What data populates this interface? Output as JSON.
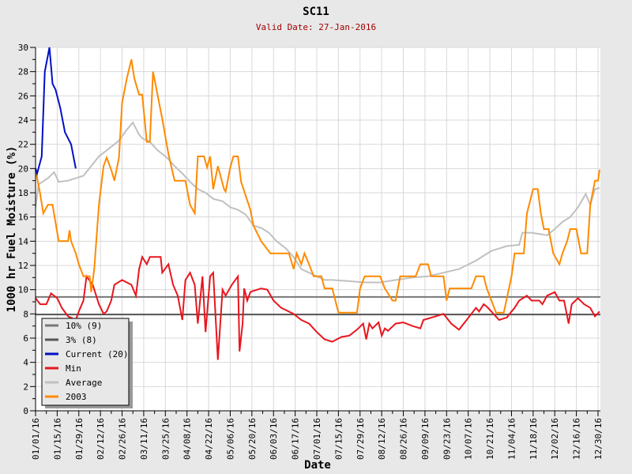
{
  "chart_data": {
    "type": "line",
    "title": "SC11",
    "subtitle": "Valid Date: 27-Jan-2016",
    "xlabel": "Date",
    "ylabel": "1000 hr Fuel Moisture (%)",
    "ylim": [
      0,
      30
    ],
    "xlim_days": [
      0,
      365
    ],
    "grid": true,
    "legend_position": "bottom-left",
    "yticks": [
      0,
      2,
      4,
      6,
      8,
      10,
      12,
      14,
      16,
      18,
      20,
      22,
      24,
      26,
      28,
      30
    ],
    "xtick_labels": [
      "01/01/16",
      "01/15/16",
      "01/29/16",
      "02/12/16",
      "02/26/16",
      "03/11/16",
      "03/25/16",
      "04/08/16",
      "04/22/16",
      "05/06/16",
      "05/20/16",
      "06/03/16",
      "06/17/16",
      "07/01/16",
      "07/15/16",
      "07/29/16",
      "08/12/16",
      "08/26/16",
      "09/09/16",
      "09/23/16",
      "10/07/16",
      "10/21/16",
      "11/04/16",
      "11/18/16",
      "12/02/16",
      "12/16/16",
      "12/30/16"
    ],
    "thresholds": [
      {
        "name": "10% (9)",
        "value": 9.4,
        "color": "#777777"
      },
      {
        "name": "3% (8)",
        "value": 7.95,
        "color": "#555555"
      }
    ],
    "series": [
      {
        "name": "Min",
        "color": "#e8161e",
        "points": [
          [
            0,
            9.3
          ],
          [
            3,
            8.8
          ],
          [
            7,
            8.8
          ],
          [
            10,
            9.7
          ],
          [
            14,
            9.3
          ],
          [
            17,
            8.5
          ],
          [
            21,
            7.8
          ],
          [
            26,
            7.5
          ],
          [
            28,
            8.2
          ],
          [
            31,
            9.1
          ],
          [
            33,
            11.1
          ],
          [
            37,
            10.4
          ],
          [
            41,
            8.8
          ],
          [
            44,
            8.0
          ],
          [
            46,
            8.2
          ],
          [
            49,
            9.1
          ],
          [
            51,
            10.4
          ],
          [
            56,
            10.8
          ],
          [
            62,
            10.4
          ],
          [
            65,
            9.5
          ],
          [
            67,
            11.7
          ],
          [
            69,
            12.7
          ],
          [
            72,
            12.1
          ],
          [
            74,
            12.7
          ],
          [
            81,
            12.7
          ],
          [
            82,
            11.4
          ],
          [
            86,
            12.1
          ],
          [
            89,
            10.4
          ],
          [
            92,
            9.5
          ],
          [
            95,
            7.5
          ],
          [
            97,
            10.8
          ],
          [
            100,
            11.4
          ],
          [
            103,
            10.4
          ],
          [
            105,
            7.2
          ],
          [
            108,
            11.1
          ],
          [
            110,
            6.5
          ],
          [
            113,
            11.1
          ],
          [
            115,
            11.4
          ],
          [
            118,
            4.2
          ],
          [
            121,
            10.0
          ],
          [
            123,
            9.5
          ],
          [
            127,
            10.4
          ],
          [
            131,
            11.1
          ],
          [
            132,
            4.9
          ],
          [
            134,
            7.2
          ],
          [
            135,
            10.1
          ],
          [
            137,
            9.1
          ],
          [
            139,
            9.8
          ],
          [
            141,
            9.9
          ],
          [
            146,
            10.1
          ],
          [
            150,
            10.0
          ],
          [
            154,
            9.1
          ],
          [
            159,
            8.5
          ],
          [
            167,
            8.0
          ],
          [
            172,
            7.5
          ],
          [
            177,
            7.2
          ],
          [
            182,
            6.5
          ],
          [
            187,
            5.9
          ],
          [
            192,
            5.7
          ],
          [
            198,
            6.1
          ],
          [
            203,
            6.2
          ],
          [
            208,
            6.7
          ],
          [
            212,
            7.2
          ],
          [
            214,
            5.9
          ],
          [
            216,
            7.2
          ],
          [
            218,
            6.8
          ],
          [
            222,
            7.3
          ],
          [
            224,
            6.2
          ],
          [
            226,
            6.8
          ],
          [
            228,
            6.6
          ],
          [
            233,
            7.2
          ],
          [
            238,
            7.3
          ],
          [
            244,
            7.0
          ],
          [
            249,
            6.8
          ],
          [
            251,
            7.5
          ],
          [
            259,
            7.8
          ],
          [
            264,
            8.0
          ],
          [
            269,
            7.2
          ],
          [
            274,
            6.7
          ],
          [
            279,
            7.5
          ],
          [
            285,
            8.5
          ],
          [
            287,
            8.2
          ],
          [
            290,
            8.8
          ],
          [
            292,
            8.6
          ],
          [
            295,
            8.2
          ],
          [
            300,
            7.5
          ],
          [
            305,
            7.7
          ],
          [
            308,
            8.2
          ],
          [
            310,
            8.5
          ],
          [
            313,
            9.1
          ],
          [
            318,
            9.5
          ],
          [
            321,
            9.1
          ],
          [
            326,
            9.1
          ],
          [
            328,
            8.8
          ],
          [
            331,
            9.5
          ],
          [
            336,
            9.8
          ],
          [
            339,
            9.1
          ],
          [
            342,
            9.1
          ],
          [
            345,
            7.2
          ],
          [
            347,
            8.8
          ],
          [
            351,
            9.3
          ],
          [
            355,
            8.8
          ],
          [
            359,
            8.5
          ],
          [
            362,
            7.8
          ],
          [
            365,
            8.2
          ]
        ]
      },
      {
        "name": "Average",
        "color": "#c0c0c0",
        "points": [
          [
            0,
            16.8
          ],
          [
            2,
            18.7
          ],
          [
            8,
            19.2
          ],
          [
            12,
            19.7
          ],
          [
            15,
            18.9
          ],
          [
            21,
            19.0
          ],
          [
            26,
            19.2
          ],
          [
            31,
            19.4
          ],
          [
            36,
            20.2
          ],
          [
            41,
            21.0
          ],
          [
            46,
            21.5
          ],
          [
            54,
            22.3
          ],
          [
            59,
            23.2
          ],
          [
            63,
            23.8
          ],
          [
            67,
            22.8
          ],
          [
            69,
            22.5
          ],
          [
            74,
            22.2
          ],
          [
            79,
            21.5
          ],
          [
            85,
            20.9
          ],
          [
            90,
            20.2
          ],
          [
            95,
            19.6
          ],
          [
            100,
            18.9
          ],
          [
            105,
            18.3
          ],
          [
            110,
            18.0
          ],
          [
            115,
            17.5
          ],
          [
            121,
            17.3
          ],
          [
            126,
            16.8
          ],
          [
            131,
            16.6
          ],
          [
            136,
            16.2
          ],
          [
            141,
            15.3
          ],
          [
            146,
            15.1
          ],
          [
            151,
            14.7
          ],
          [
            156,
            14.0
          ],
          [
            162,
            13.4
          ],
          [
            167,
            12.7
          ],
          [
            172,
            11.7
          ],
          [
            177,
            11.4
          ],
          [
            182,
            11.1
          ],
          [
            187,
            10.8
          ],
          [
            192,
            10.8
          ],
          [
            203,
            10.7
          ],
          [
            213,
            10.6
          ],
          [
            223,
            10.6
          ],
          [
            233,
            10.8
          ],
          [
            244,
            11.0
          ],
          [
            254,
            11.1
          ],
          [
            264,
            11.4
          ],
          [
            274,
            11.7
          ],
          [
            285,
            12.4
          ],
          [
            295,
            13.2
          ],
          [
            305,
            13.6
          ],
          [
            313,
            13.7
          ],
          [
            315,
            14.7
          ],
          [
            321,
            14.7
          ],
          [
            331,
            14.5
          ],
          [
            336,
            15.0
          ],
          [
            341,
            15.6
          ],
          [
            346,
            16.0
          ],
          [
            351,
            16.8
          ],
          [
            356,
            17.9
          ],
          [
            359,
            17.0
          ],
          [
            362,
            18.3
          ],
          [
            365,
            18.4
          ]
        ]
      },
      {
        "name": "2003",
        "color": "#ff8a00",
        "points": [
          [
            0,
            19.9
          ],
          [
            3,
            17.9
          ],
          [
            5,
            16.3
          ],
          [
            8,
            17.0
          ],
          [
            11,
            17.0
          ],
          [
            15,
            14.0
          ],
          [
            21,
            14.0
          ],
          [
            22,
            14.9
          ],
          [
            23,
            14.0
          ],
          [
            26,
            13.0
          ],
          [
            28,
            12.1
          ],
          [
            31,
            11.1
          ],
          [
            35,
            11.1
          ],
          [
            36,
            9.8
          ],
          [
            38,
            11.7
          ],
          [
            41,
            17.0
          ],
          [
            44,
            20.2
          ],
          [
            46,
            20.9
          ],
          [
            49,
            19.9
          ],
          [
            51,
            19.0
          ],
          [
            54,
            20.9
          ],
          [
            56,
            25.4
          ],
          [
            59,
            27.4
          ],
          [
            62,
            29.0
          ],
          [
            64,
            27.4
          ],
          [
            67,
            26.1
          ],
          [
            69,
            26.1
          ],
          [
            72,
            22.2
          ],
          [
            74,
            22.2
          ],
          [
            76,
            28.0
          ],
          [
            78,
            26.7
          ],
          [
            82,
            24.1
          ],
          [
            86,
            21.2
          ],
          [
            90,
            19.0
          ],
          [
            97,
            19.0
          ],
          [
            100,
            17.0
          ],
          [
            103,
            16.3
          ],
          [
            105,
            21.0
          ],
          [
            109,
            21.0
          ],
          [
            111,
            20.1
          ],
          [
            113,
            21.0
          ],
          [
            115,
            18.3
          ],
          [
            118,
            20.2
          ],
          [
            122,
            18.3
          ],
          [
            123,
            18.1
          ],
          [
            126,
            20.1
          ],
          [
            128,
            21.0
          ],
          [
            131,
            21.0
          ],
          [
            133,
            18.9
          ],
          [
            139,
            16.6
          ],
          [
            141,
            15.3
          ],
          [
            146,
            14.0
          ],
          [
            152,
            13.0
          ],
          [
            164,
            13.0
          ],
          [
            167,
            11.7
          ],
          [
            169,
            13.0
          ],
          [
            172,
            12.1
          ],
          [
            174,
            13.0
          ],
          [
            177,
            12.1
          ],
          [
            180,
            11.1
          ],
          [
            185,
            11.1
          ],
          [
            187,
            10.1
          ],
          [
            192,
            10.1
          ],
          [
            196,
            8.1
          ],
          [
            208,
            8.1
          ],
          [
            210,
            10.1
          ],
          [
            213,
            11.1
          ],
          [
            223,
            11.1
          ],
          [
            226,
            10.1
          ],
          [
            231,
            9.1
          ],
          [
            233,
            9.1
          ],
          [
            236,
            11.1
          ],
          [
            246,
            11.1
          ],
          [
            249,
            12.1
          ],
          [
            254,
            12.1
          ],
          [
            256,
            11.1
          ],
          [
            264,
            11.1
          ],
          [
            266,
            9.1
          ],
          [
            268,
            10.1
          ],
          [
            282,
            10.1
          ],
          [
            285,
            11.1
          ],
          [
            290,
            11.1
          ],
          [
            292,
            10.1
          ],
          [
            298,
            8.1
          ],
          [
            303,
            8.1
          ],
          [
            308,
            11.1
          ],
          [
            310,
            13.0
          ],
          [
            316,
            13.0
          ],
          [
            318,
            16.3
          ],
          [
            322,
            18.3
          ],
          [
            325,
            18.3
          ],
          [
            327,
            16.3
          ],
          [
            329,
            15.0
          ],
          [
            332,
            15.0
          ],
          [
            335,
            13.0
          ],
          [
            339,
            12.1
          ],
          [
            341,
            13.0
          ],
          [
            344,
            14.0
          ],
          [
            346,
            15.0
          ],
          [
            350,
            15.0
          ],
          [
            353,
            13.0
          ],
          [
            357,
            13.0
          ],
          [
            359,
            17.0
          ],
          [
            362,
            19.0
          ],
          [
            364,
            19.0
          ],
          [
            365,
            19.9
          ]
        ]
      },
      {
        "name": "Current (20)",
        "color": "#0010c8",
        "points": [
          [
            0,
            20.0
          ],
          [
            1,
            19.6
          ],
          [
            4,
            21.0
          ],
          [
            6,
            28.0
          ],
          [
            9,
            30.0
          ],
          [
            11,
            27.0
          ],
          [
            13,
            26.5
          ],
          [
            16,
            25.0
          ],
          [
            19,
            23.0
          ],
          [
            23,
            22.0
          ],
          [
            26,
            20.0
          ]
        ]
      }
    ],
    "legend": [
      {
        "label": "10% (9)",
        "color": "#777777"
      },
      {
        "label": "3% (8)",
        "color": "#555555"
      },
      {
        "label": "Current (20)",
        "color": "#0010c8"
      },
      {
        "label": "Min",
        "color": "#e8161e"
      },
      {
        "label": "Average",
        "color": "#c0c0c0"
      },
      {
        "label": "2003",
        "color": "#ff8a00"
      }
    ]
  }
}
